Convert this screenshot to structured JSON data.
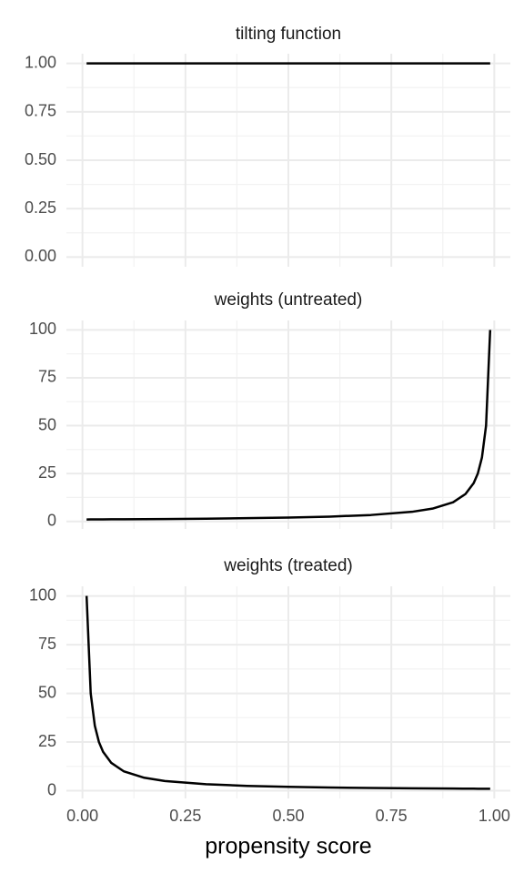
{
  "chart_data": [
    {
      "type": "line",
      "title": "tilting function",
      "x": [
        0.01,
        0.02,
        0.03,
        0.04,
        0.05,
        0.07,
        0.1,
        0.15,
        0.2,
        0.3,
        0.4,
        0.5,
        0.6,
        0.7,
        0.8,
        0.85,
        0.9,
        0.93,
        0.95,
        0.96,
        0.97,
        0.98,
        0.99
      ],
      "series": [
        {
          "color": "#000000",
          "values": [
            1,
            1,
            1,
            1,
            1,
            1,
            1,
            1,
            1,
            1,
            1,
            1,
            1,
            1,
            1,
            1,
            1,
            1,
            1,
            1,
            1,
            1,
            1
          ]
        }
      ],
      "xlim": [
        -0.039,
        1.039
      ],
      "xticks": [
        {
          "value": 0,
          "label": "0.00"
        },
        {
          "value": 0.25,
          "label": "0.25"
        },
        {
          "value": 0.5,
          "label": "0.50"
        },
        {
          "value": 0.75,
          "label": "0.75"
        },
        {
          "value": 1,
          "label": "1.00"
        }
      ],
      "ylim": [
        -0.05,
        1.05
      ],
      "yticks": [
        {
          "value": 0,
          "label": "0.00"
        },
        {
          "value": 0.25,
          "label": "0.25"
        },
        {
          "value": 0.5,
          "label": "0.50"
        },
        {
          "value": 0.75,
          "label": "0.75"
        },
        {
          "value": 1,
          "label": "1.00"
        }
      ],
      "grid": true
    },
    {
      "type": "line",
      "title": "weights (untreated)",
      "x": [
        0.01,
        0.02,
        0.03,
        0.04,
        0.05,
        0.07,
        0.1,
        0.15,
        0.2,
        0.3,
        0.4,
        0.5,
        0.6,
        0.7,
        0.8,
        0.85,
        0.9,
        0.93,
        0.95,
        0.96,
        0.97,
        0.98,
        0.99
      ],
      "series": [
        {
          "color": "#000000",
          "values": [
            1.01,
            1.02,
            1.03,
            1.04,
            1.05,
            1.08,
            1.11,
            1.18,
            1.25,
            1.43,
            1.67,
            2,
            2.5,
            3.33,
            5,
            6.67,
            10,
            14.29,
            20,
            25,
            33.33,
            50,
            100
          ]
        }
      ],
      "xlim": [
        -0.039,
        1.039
      ],
      "xticks": [
        {
          "value": 0,
          "label": "0.00"
        },
        {
          "value": 0.25,
          "label": "0.25"
        },
        {
          "value": 0.5,
          "label": "0.50"
        },
        {
          "value": 0.75,
          "label": "0.75"
        },
        {
          "value": 1,
          "label": "1.00"
        }
      ],
      "ylim": [
        -3.95,
        104.95
      ],
      "yticks": [
        0,
        25,
        50,
        75,
        100
      ],
      "grid": true
    },
    {
      "type": "line",
      "title": "weights (treated)",
      "xlabel": "propensity score",
      "x": [
        0.01,
        0.02,
        0.03,
        0.04,
        0.05,
        0.07,
        0.1,
        0.15,
        0.2,
        0.3,
        0.4,
        0.5,
        0.6,
        0.7,
        0.8,
        0.85,
        0.9,
        0.93,
        0.95,
        0.96,
        0.97,
        0.98,
        0.99
      ],
      "series": [
        {
          "color": "#000000",
          "values": [
            100,
            50,
            33.33,
            25,
            20,
            14.29,
            10,
            6.67,
            5,
            3.33,
            2.5,
            2,
            1.67,
            1.43,
            1.25,
            1.18,
            1.11,
            1.08,
            1.05,
            1.04,
            1.03,
            1.02,
            1.01
          ]
        }
      ],
      "xlim": [
        -0.039,
        1.039
      ],
      "xticks": [
        {
          "value": 0,
          "label": "0.00"
        },
        {
          "value": 0.25,
          "label": "0.25"
        },
        {
          "value": 0.5,
          "label": "0.50"
        },
        {
          "value": 0.75,
          "label": "0.75"
        },
        {
          "value": 1,
          "label": "1.00"
        }
      ],
      "ylim": [
        -3.95,
        104.95
      ],
      "yticks": [
        0,
        25,
        50,
        75,
        100
      ],
      "grid": true
    }
  ]
}
